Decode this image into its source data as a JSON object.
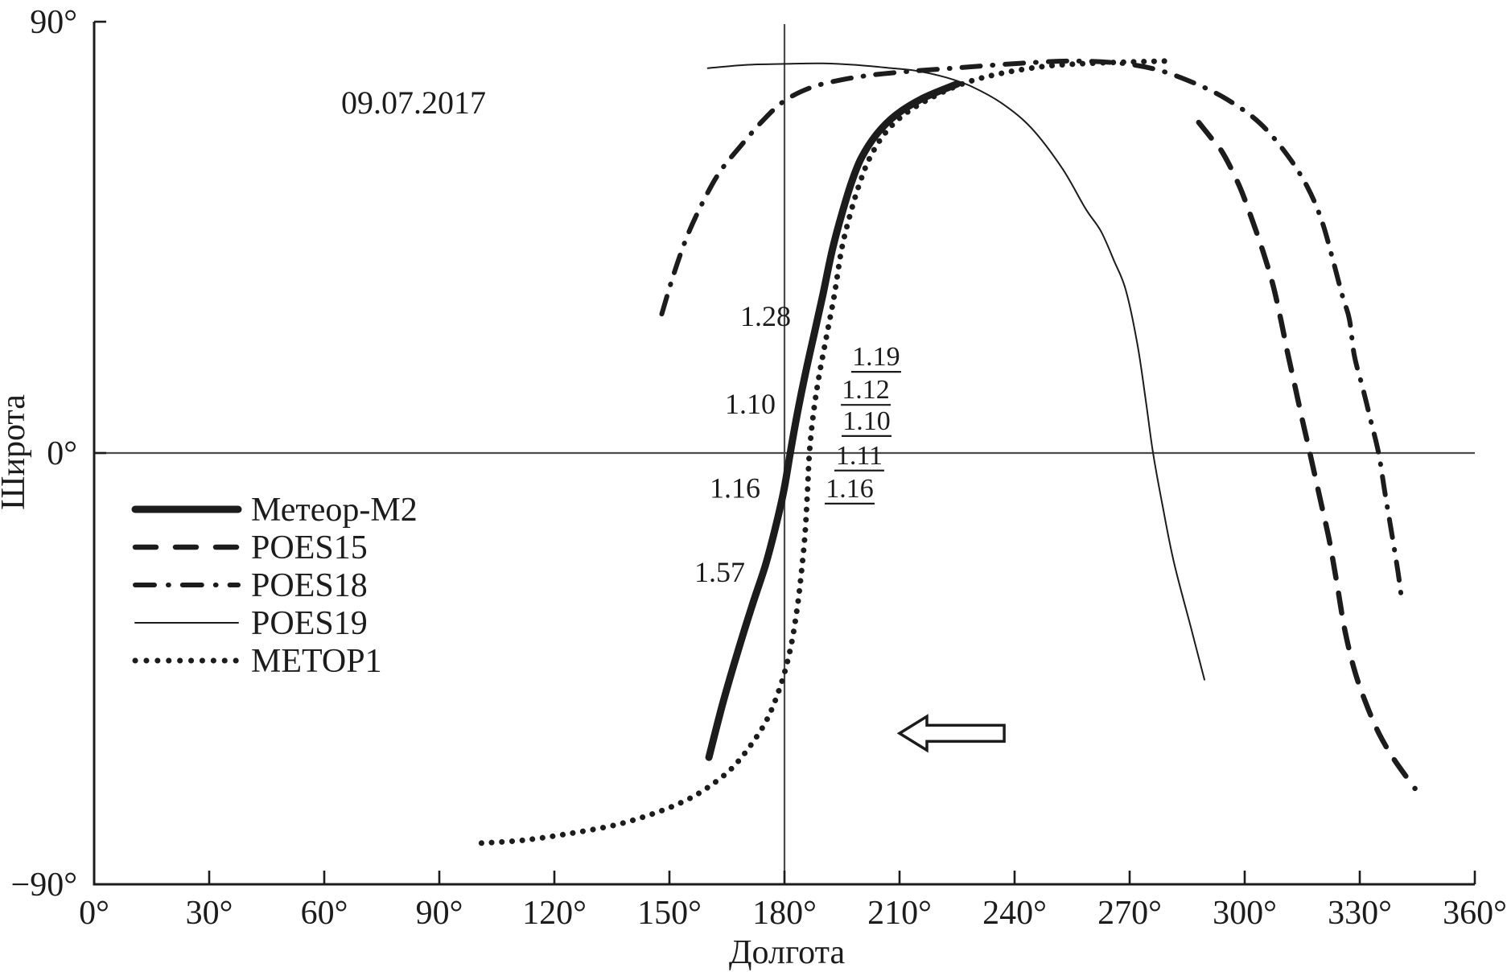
{
  "figure": {
    "date_label": "09.07.2017",
    "ink_color": "#1c1c1c",
    "ref_line_color": "#4b4b4b",
    "background": "#ffffff"
  },
  "chart_data": {
    "type": "line",
    "title": "",
    "date_label": "09.07.2017",
    "xlabel": "Долгота",
    "ylabel": "Широта",
    "xlim": [
      0,
      360
    ],
    "ylim": [
      -90,
      90
    ],
    "grid": false,
    "x_ticks": [
      {
        "value": 0,
        "label": "0°"
      },
      {
        "value": 30,
        "label": "30°"
      },
      {
        "value": 60,
        "label": "60°"
      },
      {
        "value": 90,
        "label": "90°"
      },
      {
        "value": 120,
        "label": "120°"
      },
      {
        "value": 150,
        "label": "150°"
      },
      {
        "value": 180,
        "label": "180°"
      },
      {
        "value": 210,
        "label": "210°"
      },
      {
        "value": 240,
        "label": "240°"
      },
      {
        "value": 270,
        "label": "270°"
      },
      {
        "value": 300,
        "label": "300°"
      },
      {
        "value": 330,
        "label": "330°"
      },
      {
        "value": 360,
        "label": "360°"
      }
    ],
    "y_ticks": [
      {
        "value": 90,
        "label": "90°"
      },
      {
        "value": 0,
        "label": "0°"
      },
      {
        "value": -90,
        "label": "−90°"
      }
    ],
    "reference_lines": {
      "horizontal_at_lat": 0,
      "vertical_at_lon": 180
    },
    "series": [
      {
        "key": "meteor-m2",
        "name": "Метеор-М2",
        "style": "solid-thick",
        "points": [
          [
            160.3,
            -63.5
          ],
          [
            164,
            -52
          ],
          [
            168,
            -41
          ],
          [
            171.5,
            -32
          ],
          [
            175,
            -23.5
          ],
          [
            177.5,
            -16
          ],
          [
            179.8,
            -8
          ],
          [
            181.5,
            0
          ],
          [
            183.3,
            8
          ],
          [
            185.3,
            16
          ],
          [
            187.5,
            24
          ],
          [
            190,
            33
          ],
          [
            192.5,
            42.5
          ],
          [
            195,
            50
          ],
          [
            197.5,
            56.5
          ],
          [
            200,
            61.5
          ],
          [
            204,
            66.5
          ],
          [
            209,
            70.5
          ],
          [
            216,
            74
          ],
          [
            225,
            77
          ]
        ]
      },
      {
        "key": "poes15",
        "name": "POES15",
        "style": "dashed",
        "points": [
          [
            288,
            69
          ],
          [
            291,
            66
          ],
          [
            294.3,
            62.6
          ],
          [
            298.5,
            55.9
          ],
          [
            301.7,
            49.2
          ],
          [
            304.8,
            42
          ],
          [
            307.3,
            35.3
          ],
          [
            309.4,
            27.9
          ],
          [
            311.1,
            21.2
          ],
          [
            313.1,
            14
          ],
          [
            315,
            7
          ],
          [
            317,
            0
          ],
          [
            319.5,
            -9
          ],
          [
            322,
            -18
          ],
          [
            324,
            -27
          ],
          [
            326,
            -36.5
          ],
          [
            328.5,
            -45
          ],
          [
            331.5,
            -52
          ],
          [
            335,
            -58.5
          ],
          [
            339,
            -64
          ],
          [
            344.4,
            -70
          ]
        ]
      },
      {
        "key": "poes18",
        "name": "POES18",
        "style": "dash-dot",
        "points": [
          [
            148,
            29
          ],
          [
            151,
            37
          ],
          [
            154.5,
            45
          ],
          [
            158.5,
            52
          ],
          [
            163,
            58.5
          ],
          [
            168.5,
            64
          ],
          [
            174.5,
            69.5
          ],
          [
            180,
            73.5
          ],
          [
            187,
            76.3
          ],
          [
            195,
            77.9
          ],
          [
            203,
            78.9
          ],
          [
            212,
            79.6
          ],
          [
            222,
            80.2
          ],
          [
            232,
            80.8
          ],
          [
            243,
            81.4
          ],
          [
            255,
            81.8
          ],
          [
            268,
            81.3
          ],
          [
            278,
            79.8
          ],
          [
            288,
            76.8
          ],
          [
            296,
            73.5
          ],
          [
            304,
            68.8
          ],
          [
            311,
            62.3
          ],
          [
            316.3,
            55.6
          ],
          [
            320,
            48.7
          ],
          [
            323,
            40.3
          ],
          [
            325.5,
            32.7
          ],
          [
            327.3,
            27.9
          ],
          [
            328.6,
            20.3
          ],
          [
            330.8,
            13.5
          ],
          [
            332.8,
            7
          ],
          [
            334.9,
            0
          ],
          [
            336.6,
            -8.5
          ],
          [
            338.4,
            -17
          ],
          [
            340,
            -25
          ],
          [
            341,
            -31
          ]
        ]
      },
      {
        "key": "poes19",
        "name": "POES19",
        "style": "solid-thin",
        "points": [
          [
            160,
            80.3
          ],
          [
            170,
            81
          ],
          [
            180,
            81.2
          ],
          [
            190,
            81.3
          ],
          [
            200,
            80.9
          ],
          [
            208,
            80.3
          ],
          [
            214,
            79.8
          ],
          [
            222,
            78.4
          ],
          [
            229,
            76.4
          ],
          [
            237,
            72.8
          ],
          [
            244.5,
            67.7
          ],
          [
            252.5,
            59.3
          ],
          [
            258.5,
            51
          ],
          [
            262.5,
            46.3
          ],
          [
            266,
            40
          ],
          [
            269,
            34
          ],
          [
            272,
            22.8
          ],
          [
            274.2,
            11
          ],
          [
            276.1,
            0
          ],
          [
            278.7,
            -11.5
          ],
          [
            281.6,
            -23
          ],
          [
            286,
            -36.5
          ],
          [
            289.5,
            -47.3
          ]
        ]
      },
      {
        "key": "metop1",
        "name": "METOP1",
        "style": "dotted",
        "points": [
          [
            101,
            -81.4
          ],
          [
            112,
            -80.8
          ],
          [
            124,
            -79.4
          ],
          [
            136,
            -77.6
          ],
          [
            146,
            -75.2
          ],
          [
            154,
            -72.6
          ],
          [
            160,
            -69.8
          ],
          [
            166,
            -66
          ],
          [
            171,
            -61.2
          ],
          [
            175.5,
            -55.5
          ],
          [
            179,
            -48.5
          ],
          [
            181.5,
            -41
          ],
          [
            183.2,
            -33
          ],
          [
            184.4,
            -25
          ],
          [
            185.4,
            -16.5
          ],
          [
            186,
            -8
          ],
          [
            186.5,
            0
          ],
          [
            187.5,
            8
          ],
          [
            189,
            16
          ],
          [
            191,
            24.5
          ],
          [
            193,
            33
          ],
          [
            194.9,
            42.5
          ],
          [
            197.2,
            50
          ],
          [
            199.7,
            56.5
          ],
          [
            202.2,
            61.5
          ],
          [
            206,
            66.5
          ],
          [
            211,
            70.5
          ],
          [
            218,
            74
          ],
          [
            227,
            77.2
          ],
          [
            237,
            79.3
          ],
          [
            248,
            80.7
          ],
          [
            259,
            81.3
          ],
          [
            270,
            81.6
          ],
          [
            280,
            81.8
          ]
        ]
      }
    ],
    "legend": {
      "position": "middle-left",
      "items": [
        {
          "key": "meteor-m2",
          "label": "Метеор-М2"
        },
        {
          "key": "poes15",
          "label": "POES15"
        },
        {
          "key": "poes18",
          "label": "POES18"
        },
        {
          "key": "poes19",
          "label": "POES19"
        },
        {
          "key": "metop1",
          "label": "METOP1"
        }
      ]
    },
    "annotations": {
      "left_labels": [
        {
          "text": "1.28",
          "lat": 28.7
        },
        {
          "text": "1.10",
          "lat": 10.4
        },
        {
          "text": "1.16",
          "lat": -7.1
        },
        {
          "text": "1.57",
          "lat": -24.7
        }
      ],
      "right_labels_underlined": [
        {
          "text": "1.19",
          "lon": 203.9,
          "lat": 20.3
        },
        {
          "text": "1.12",
          "lon": 201.2,
          "lat": 13.4
        },
        {
          "text": "1.10",
          "lon": 201.4,
          "lat": 6.9
        },
        {
          "text": "1.11",
          "lon": 199.5,
          "lat": -0.3
        },
        {
          "text": "1.16",
          "lon": 197.0,
          "lat": -7.2
        }
      ],
      "arrow": {
        "direction": "left",
        "lon_tip": 210,
        "lon_tail": 237.3,
        "lat": -58.5
      }
    }
  }
}
